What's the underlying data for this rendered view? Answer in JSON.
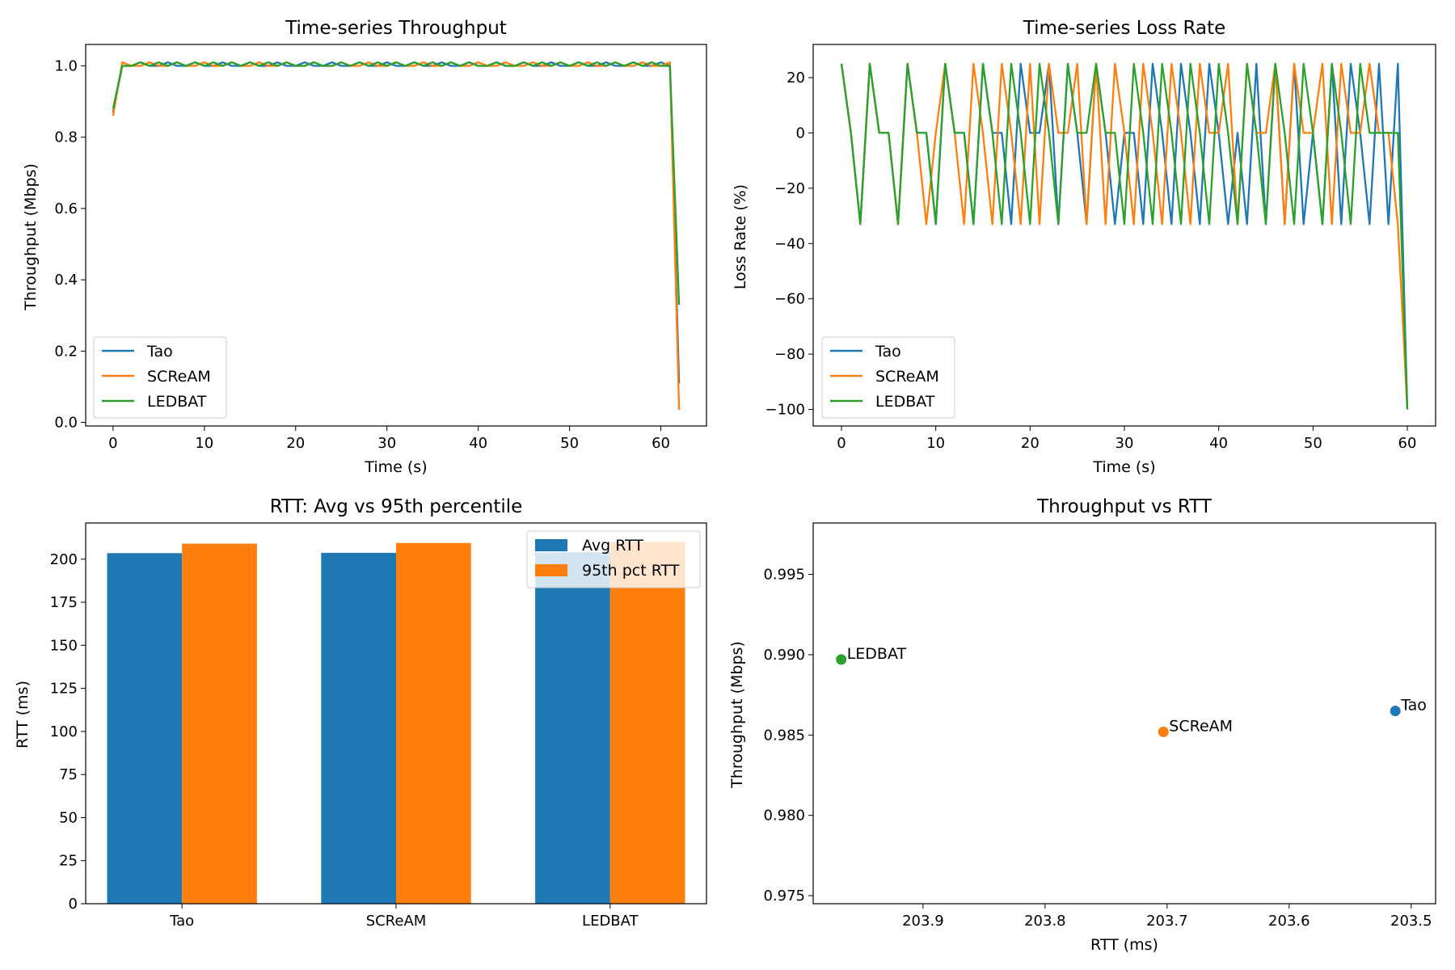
{
  "colors": {
    "Tao": "#1f77b4",
    "SCReAM": "#ff7f0e",
    "LEDBAT": "#2ca02c"
  },
  "chart_data": [
    {
      "type": "line",
      "title": "Time-series Throughput",
      "xlabel": "Time (s)",
      "ylabel": "Throughput (Mbps)",
      "xlim": [
        -3,
        65
      ],
      "ylim": [
        -0.01,
        1.06
      ],
      "xticks": [
        0,
        10,
        20,
        30,
        40,
        50,
        60
      ],
      "yticks": [
        0.0,
        0.2,
        0.4,
        0.6,
        0.8,
        1.0
      ],
      "ytick_labels": [
        "0.0",
        "0.2",
        "0.4",
        "0.6",
        "0.8",
        "1.0"
      ],
      "legend": {
        "position": "lower-left",
        "entries": [
          "Tao",
          "SCReAM",
          "LEDBAT"
        ]
      },
      "series": [
        {
          "name": "Tao",
          "x": [
            0,
            1,
            2,
            3,
            4,
            5,
            6,
            7,
            8,
            9,
            10,
            11,
            12,
            13,
            14,
            15,
            16,
            17,
            18,
            19,
            20,
            21,
            22,
            23,
            24,
            25,
            26,
            27,
            28,
            29,
            30,
            31,
            32,
            33,
            34,
            35,
            36,
            37,
            38,
            39,
            40,
            41,
            42,
            43,
            44,
            45,
            46,
            47,
            48,
            49,
            50,
            51,
            52,
            53,
            54,
            55,
            56,
            57,
            58,
            59,
            60,
            61,
            62
          ],
          "y": [
            0.87,
            1.0,
            1.0,
            1.01,
            1.0,
            1.0,
            1.01,
            1.0,
            1.0,
            1.01,
            1.0,
            1.0,
            1.01,
            1.0,
            1.0,
            1.01,
            1.0,
            1.0,
            1.01,
            1.0,
            1.0,
            1.01,
            1.0,
            1.0,
            1.01,
            1.0,
            1.0,
            1.01,
            1.0,
            1.0,
            1.01,
            1.0,
            1.0,
            1.01,
            1.0,
            1.0,
            1.01,
            1.0,
            1.0,
            1.01,
            1.0,
            1.0,
            1.01,
            1.0,
            1.0,
            1.01,
            1.0,
            1.0,
            1.01,
            1.0,
            1.0,
            1.01,
            1.0,
            1.0,
            1.01,
            1.0,
            1.0,
            1.01,
            1.0,
            1.0,
            1.01,
            1.0,
            0.11
          ]
        },
        {
          "name": "SCReAM",
          "x": [
            0,
            1,
            2,
            3,
            4,
            5,
            6,
            7,
            8,
            9,
            10,
            11,
            12,
            13,
            14,
            15,
            16,
            17,
            18,
            19,
            20,
            21,
            22,
            23,
            24,
            25,
            26,
            27,
            28,
            29,
            30,
            31,
            32,
            33,
            34,
            35,
            36,
            37,
            38,
            39,
            40,
            41,
            42,
            43,
            44,
            45,
            46,
            47,
            48,
            49,
            50,
            51,
            52,
            53,
            54,
            55,
            56,
            57,
            58,
            59,
            60,
            61,
            62
          ],
          "y": [
            0.86,
            1.01,
            1.0,
            1.0,
            1.01,
            1.0,
            1.0,
            1.01,
            1.0,
            1.0,
            1.01,
            1.0,
            1.0,
            1.01,
            1.0,
            1.0,
            1.01,
            1.0,
            1.0,
            1.01,
            1.0,
            1.0,
            1.01,
            1.0,
            1.0,
            1.01,
            1.0,
            1.0,
            1.01,
            1.0,
            1.0,
            1.01,
            1.0,
            1.0,
            1.01,
            1.0,
            1.0,
            1.01,
            1.0,
            1.0,
            1.01,
            1.0,
            1.0,
            1.01,
            1.0,
            1.0,
            1.01,
            1.0,
            1.0,
            1.01,
            1.0,
            1.0,
            1.01,
            1.0,
            1.0,
            1.01,
            1.0,
            1.0,
            1.01,
            1.0,
            1.0,
            1.01,
            0.035
          ]
        },
        {
          "name": "LEDBAT",
          "x": [
            0,
            1,
            2,
            3,
            4,
            5,
            6,
            7,
            8,
            9,
            10,
            11,
            12,
            13,
            14,
            15,
            16,
            17,
            18,
            19,
            20,
            21,
            22,
            23,
            24,
            25,
            26,
            27,
            28,
            29,
            30,
            31,
            32,
            33,
            34,
            35,
            36,
            37,
            38,
            39,
            40,
            41,
            42,
            43,
            44,
            45,
            46,
            47,
            48,
            49,
            50,
            51,
            52,
            53,
            54,
            55,
            56,
            57,
            58,
            59,
            60,
            61,
            62
          ],
          "y": [
            0.88,
            1.0,
            1.0,
            1.01,
            1.0,
            1.01,
            1.0,
            1.01,
            1.0,
            1.01,
            1.0,
            1.01,
            1.0,
            1.01,
            1.0,
            1.01,
            1.0,
            1.01,
            1.0,
            1.01,
            1.0,
            1.0,
            1.01,
            1.0,
            1.0,
            1.01,
            1.0,
            1.01,
            1.0,
            1.01,
            1.0,
            1.01,
            1.0,
            1.01,
            1.0,
            1.01,
            1.0,
            1.01,
            1.0,
            1.01,
            1.0,
            1.0,
            1.01,
            1.0,
            1.0,
            1.01,
            1.0,
            1.01,
            1.0,
            1.01,
            1.0,
            1.01,
            1.0,
            1.01,
            1.0,
            1.01,
            1.0,
            1.01,
            1.0,
            1.01,
            1.0,
            1.0,
            0.33
          ]
        }
      ]
    },
    {
      "type": "line",
      "title": "Time-series Loss Rate",
      "xlabel": "Time (s)",
      "ylabel": "Loss Rate (%)",
      "xlim": [
        -3,
        63
      ],
      "ylim": [
        -106,
        32
      ],
      "xticks": [
        0,
        10,
        20,
        30,
        40,
        50,
        60
      ],
      "yticks": [
        -100,
        -80,
        -60,
        -40,
        -20,
        0,
        20
      ],
      "ytick_labels": [
        "−100",
        "−80",
        "−60",
        "−40",
        "−20",
        "0",
        "20"
      ],
      "legend": {
        "position": "lower-left",
        "entries": [
          "Tao",
          "SCReAM",
          "LEDBAT"
        ]
      },
      "series": [
        {
          "name": "Tao",
          "x": [
            0,
            1,
            2,
            3,
            4,
            5,
            6,
            7,
            8,
            9,
            10,
            11,
            12,
            13,
            14,
            15,
            16,
            17,
            18,
            19,
            20,
            21,
            22,
            23,
            24,
            25,
            26,
            27,
            28,
            29,
            30,
            31,
            32,
            33,
            34,
            35,
            36,
            37,
            38,
            39,
            40,
            41,
            42,
            43,
            44,
            45,
            46,
            47,
            48,
            49,
            50,
            51,
            52,
            53,
            54,
            55,
            56,
            57,
            58,
            59,
            60
          ],
          "y": [
            25,
            0,
            -33,
            25,
            0,
            0,
            -33,
            25,
            0,
            0,
            -33,
            25,
            0,
            0,
            -33,
            25,
            0,
            0,
            -33,
            25,
            0,
            0,
            25,
            -33,
            25,
            0,
            -33,
            25,
            0,
            -33,
            0,
            0,
            -33,
            25,
            0,
            -33,
            25,
            0,
            -33,
            25,
            0,
            -33,
            0,
            -33,
            25,
            -33,
            25,
            -33,
            25,
            -33,
            0,
            -33,
            25,
            -33,
            25,
            0,
            -33,
            25,
            -33,
            25,
            -100
          ]
        },
        {
          "name": "SCReAM",
          "x": [
            0,
            1,
            2,
            3,
            4,
            5,
            6,
            7,
            8,
            9,
            10,
            11,
            12,
            13,
            14,
            15,
            16,
            17,
            18,
            19,
            20,
            21,
            22,
            23,
            24,
            25,
            26,
            27,
            28,
            29,
            30,
            31,
            32,
            33,
            34,
            35,
            36,
            37,
            38,
            39,
            40,
            41,
            42,
            43,
            44,
            45,
            46,
            47,
            48,
            49,
            50,
            51,
            52,
            53,
            54,
            55,
            56,
            57,
            58,
            59,
            60
          ],
          "y": [
            25,
            0,
            -33,
            25,
            0,
            0,
            -33,
            25,
            0,
            -33,
            0,
            25,
            0,
            -33,
            25,
            0,
            -33,
            25,
            0,
            -33,
            25,
            -33,
            25,
            0,
            0,
            25,
            -33,
            25,
            -33,
            25,
            0,
            -33,
            25,
            0,
            -33,
            25,
            0,
            -33,
            25,
            0,
            0,
            25,
            -33,
            25,
            0,
            0,
            25,
            -33,
            25,
            0,
            0,
            25,
            -33,
            25,
            0,
            0,
            25,
            0,
            0,
            -33,
            -100
          ]
        },
        {
          "name": "LEDBAT",
          "x": [
            0,
            1,
            2,
            3,
            4,
            5,
            6,
            7,
            8,
            9,
            10,
            11,
            12,
            13,
            14,
            15,
            16,
            17,
            18,
            19,
            20,
            21,
            22,
            23,
            24,
            25,
            26,
            27,
            28,
            29,
            30,
            31,
            32,
            33,
            34,
            35,
            36,
            37,
            38,
            39,
            40,
            41,
            42,
            43,
            44,
            45,
            46,
            47,
            48,
            49,
            50,
            51,
            52,
            53,
            54,
            55,
            56,
            57,
            58,
            59,
            60
          ],
          "y": [
            25,
            0,
            -33,
            25,
            0,
            0,
            -33,
            25,
            0,
            0,
            -33,
            25,
            0,
            0,
            -33,
            25,
            0,
            -33,
            25,
            0,
            -33,
            25,
            0,
            -33,
            25,
            0,
            0,
            25,
            0,
            0,
            -33,
            25,
            0,
            -33,
            25,
            0,
            -33,
            25,
            0,
            -33,
            25,
            0,
            -33,
            25,
            0,
            -33,
            25,
            0,
            -33,
            25,
            0,
            -33,
            25,
            0,
            -33,
            25,
            0,
            0,
            0,
            0,
            -100
          ]
        }
      ]
    },
    {
      "type": "bar",
      "title": "RTT: Avg vs 95th percentile",
      "xlabel": "",
      "ylabel": "RTT (ms)",
      "categories": [
        "Tao",
        "SCReAM",
        "LEDBAT"
      ],
      "ylim": [
        0,
        221
      ],
      "yticks": [
        0,
        25,
        50,
        75,
        100,
        125,
        150,
        175,
        200
      ],
      "legend": {
        "position": "upper-right",
        "entries": [
          "Avg RTT",
          "95th pct RTT"
        ]
      },
      "series": [
        {
          "name": "Avg RTT",
          "values": [
            203.5,
            203.7,
            204.0
          ]
        },
        {
          "name": "95th pct RTT",
          "values": [
            209.0,
            209.4,
            210.0
          ]
        }
      ]
    },
    {
      "type": "scatter",
      "title": "Throughput vs RTT",
      "xlabel": "RTT (ms)",
      "ylabel": "Throughput (Mbps)",
      "x_inverted": true,
      "xlim": [
        203.99,
        203.48
      ],
      "ylim": [
        0.9745,
        0.9982
      ],
      "xticks": [
        203.9,
        203.8,
        203.7,
        203.6,
        203.5
      ],
      "yticks": [
        0.975,
        0.98,
        0.985,
        0.99,
        0.995
      ],
      "ytick_labels": [
        "0.975",
        "0.980",
        "0.985",
        "0.990",
        "0.995"
      ],
      "points": [
        {
          "label": "Tao",
          "x": 203.513,
          "y": 0.9865
        },
        {
          "label": "SCReAM",
          "x": 203.703,
          "y": 0.9852
        },
        {
          "label": "LEDBAT",
          "x": 203.967,
          "y": 0.9897
        }
      ]
    }
  ]
}
